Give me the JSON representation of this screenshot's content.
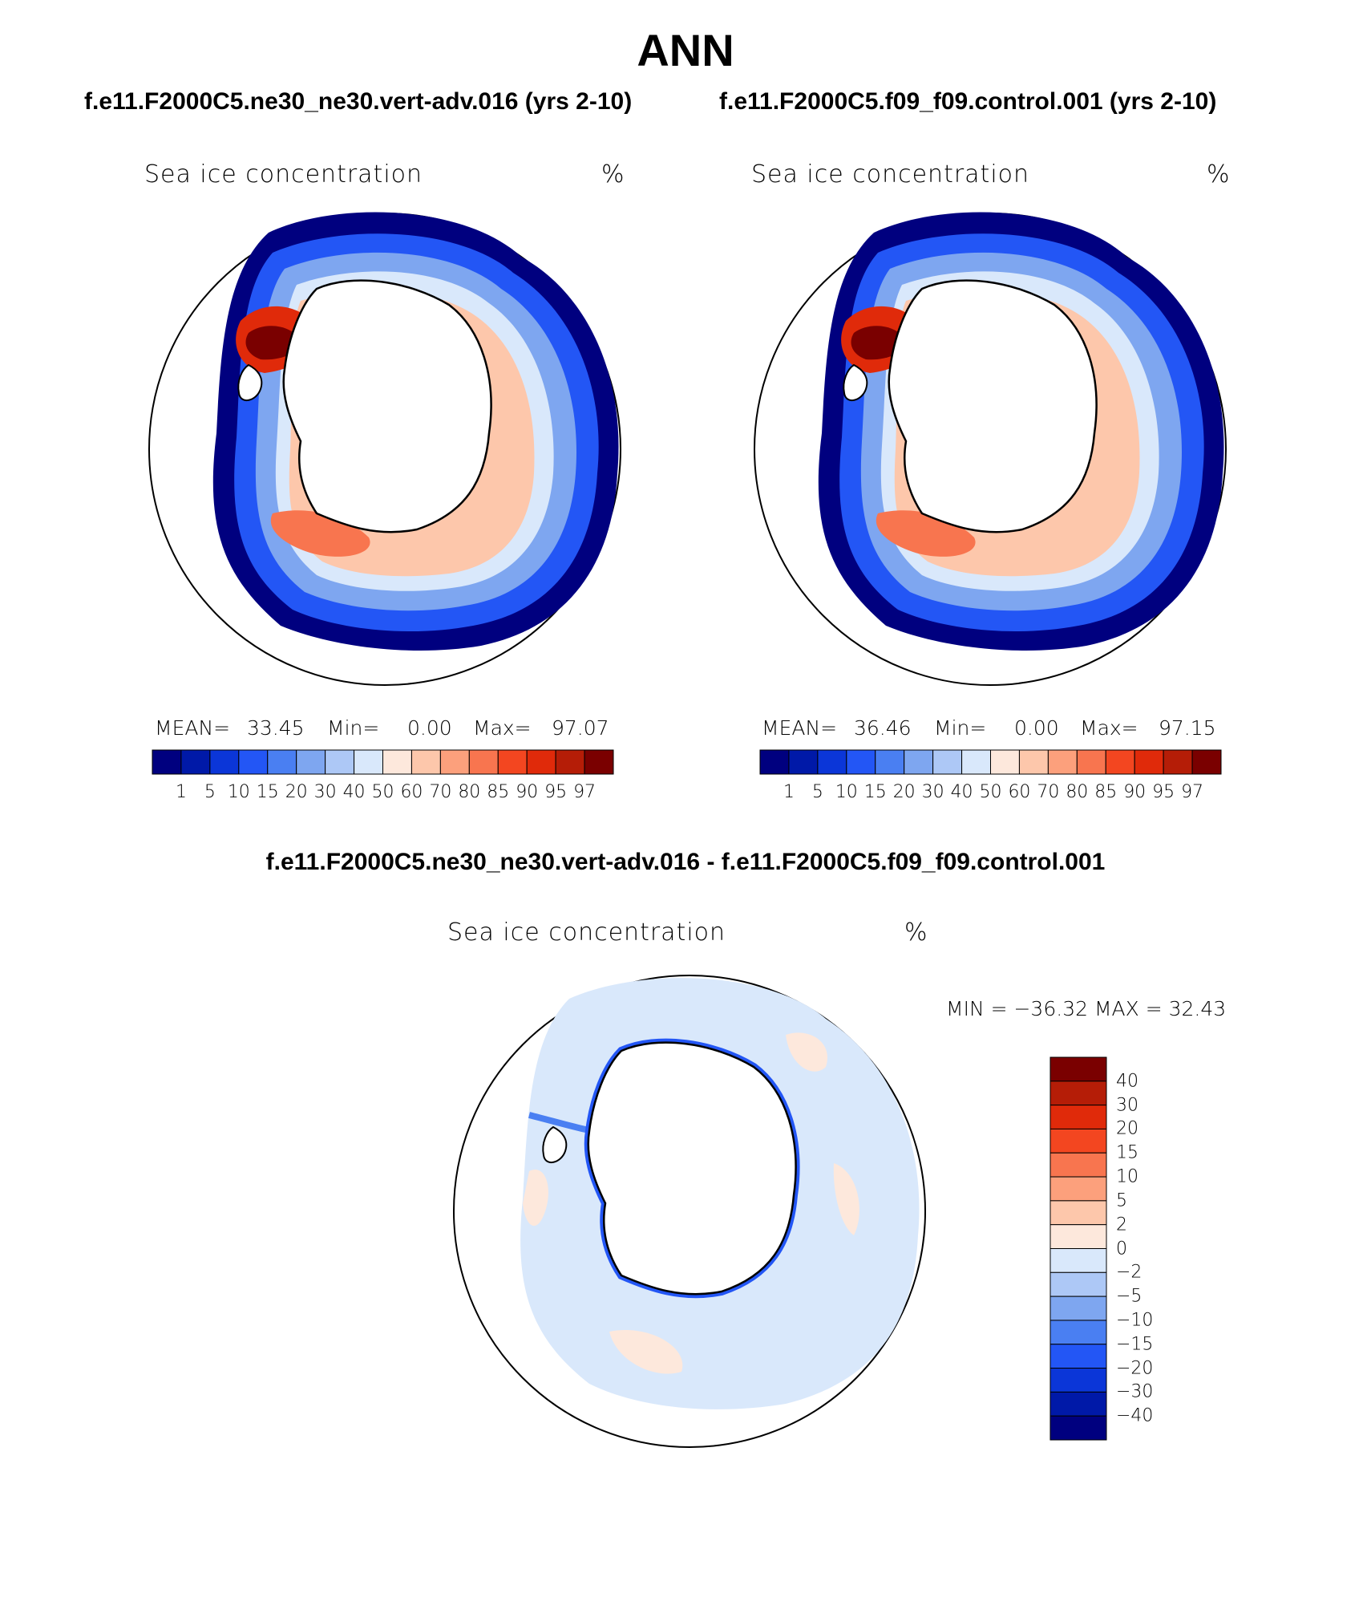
{
  "title": "ANN",
  "panels": {
    "case1": {
      "name": "f.e11.F2000C5.ne30_ne30.vert-adv.016 (yrs 2-10)",
      "var_label": "Sea ice concentration",
      "units": "%",
      "mean_label": "MEAN=",
      "mean_value": "33.45",
      "min_label": "Min=",
      "min_value": "0.00",
      "max_label": "Max=",
      "max_value": "97.07"
    },
    "case2": {
      "name": "f.e11.F2000C5.f09_f09.control.001 (yrs 2-10)",
      "var_label": "Sea ice concentration",
      "units": "%",
      "mean_label": "MEAN=",
      "mean_value": "36.46",
      "min_label": "Min=",
      "min_value": "0.00",
      "max_label": "Max=",
      "max_value": "97.15"
    },
    "diff": {
      "name": "f.e11.F2000C5.ne30_ne30.vert-adv.016 - f.e11.F2000C5.f09_f09.control.001",
      "var_label": "Sea ice concentration",
      "units": "%",
      "minmax_text": "MIN = −36.32 MAX =   32.43"
    }
  },
  "colorbar_horizontal": {
    "colors": [
      "#00007f",
      "#0019a8",
      "#0b36d8",
      "#2356f5",
      "#4a7ff2",
      "#7ea6f0",
      "#adc8f6",
      "#d9e8fb",
      "#fde8dc",
      "#fdc7ab",
      "#fca07c",
      "#f8754f",
      "#f34620",
      "#e02a0a",
      "#b51d07",
      "#7a0000"
    ],
    "labels": [
      "1",
      "5",
      "10",
      "15",
      "20",
      "30",
      "40",
      "50",
      "60",
      "70",
      "80",
      "85",
      "90",
      "95",
      "97"
    ]
  },
  "colorbar_vertical": {
    "colors": [
      "#7a0000",
      "#b51d07",
      "#e02a0a",
      "#f34620",
      "#f8754f",
      "#fca07c",
      "#fdc7ab",
      "#fde8dc",
      "#d9e8fb",
      "#adc8f6",
      "#7ea6f0",
      "#4a7ff2",
      "#2356f5",
      "#0b36d8",
      "#0019a8",
      "#00007f"
    ],
    "labels": [
      "40",
      "30",
      "20",
      "15",
      "10",
      "5",
      "2",
      "0",
      "−2",
      "−5",
      "−10",
      "−15",
      "−20",
      "−30",
      "−40"
    ]
  }
}
